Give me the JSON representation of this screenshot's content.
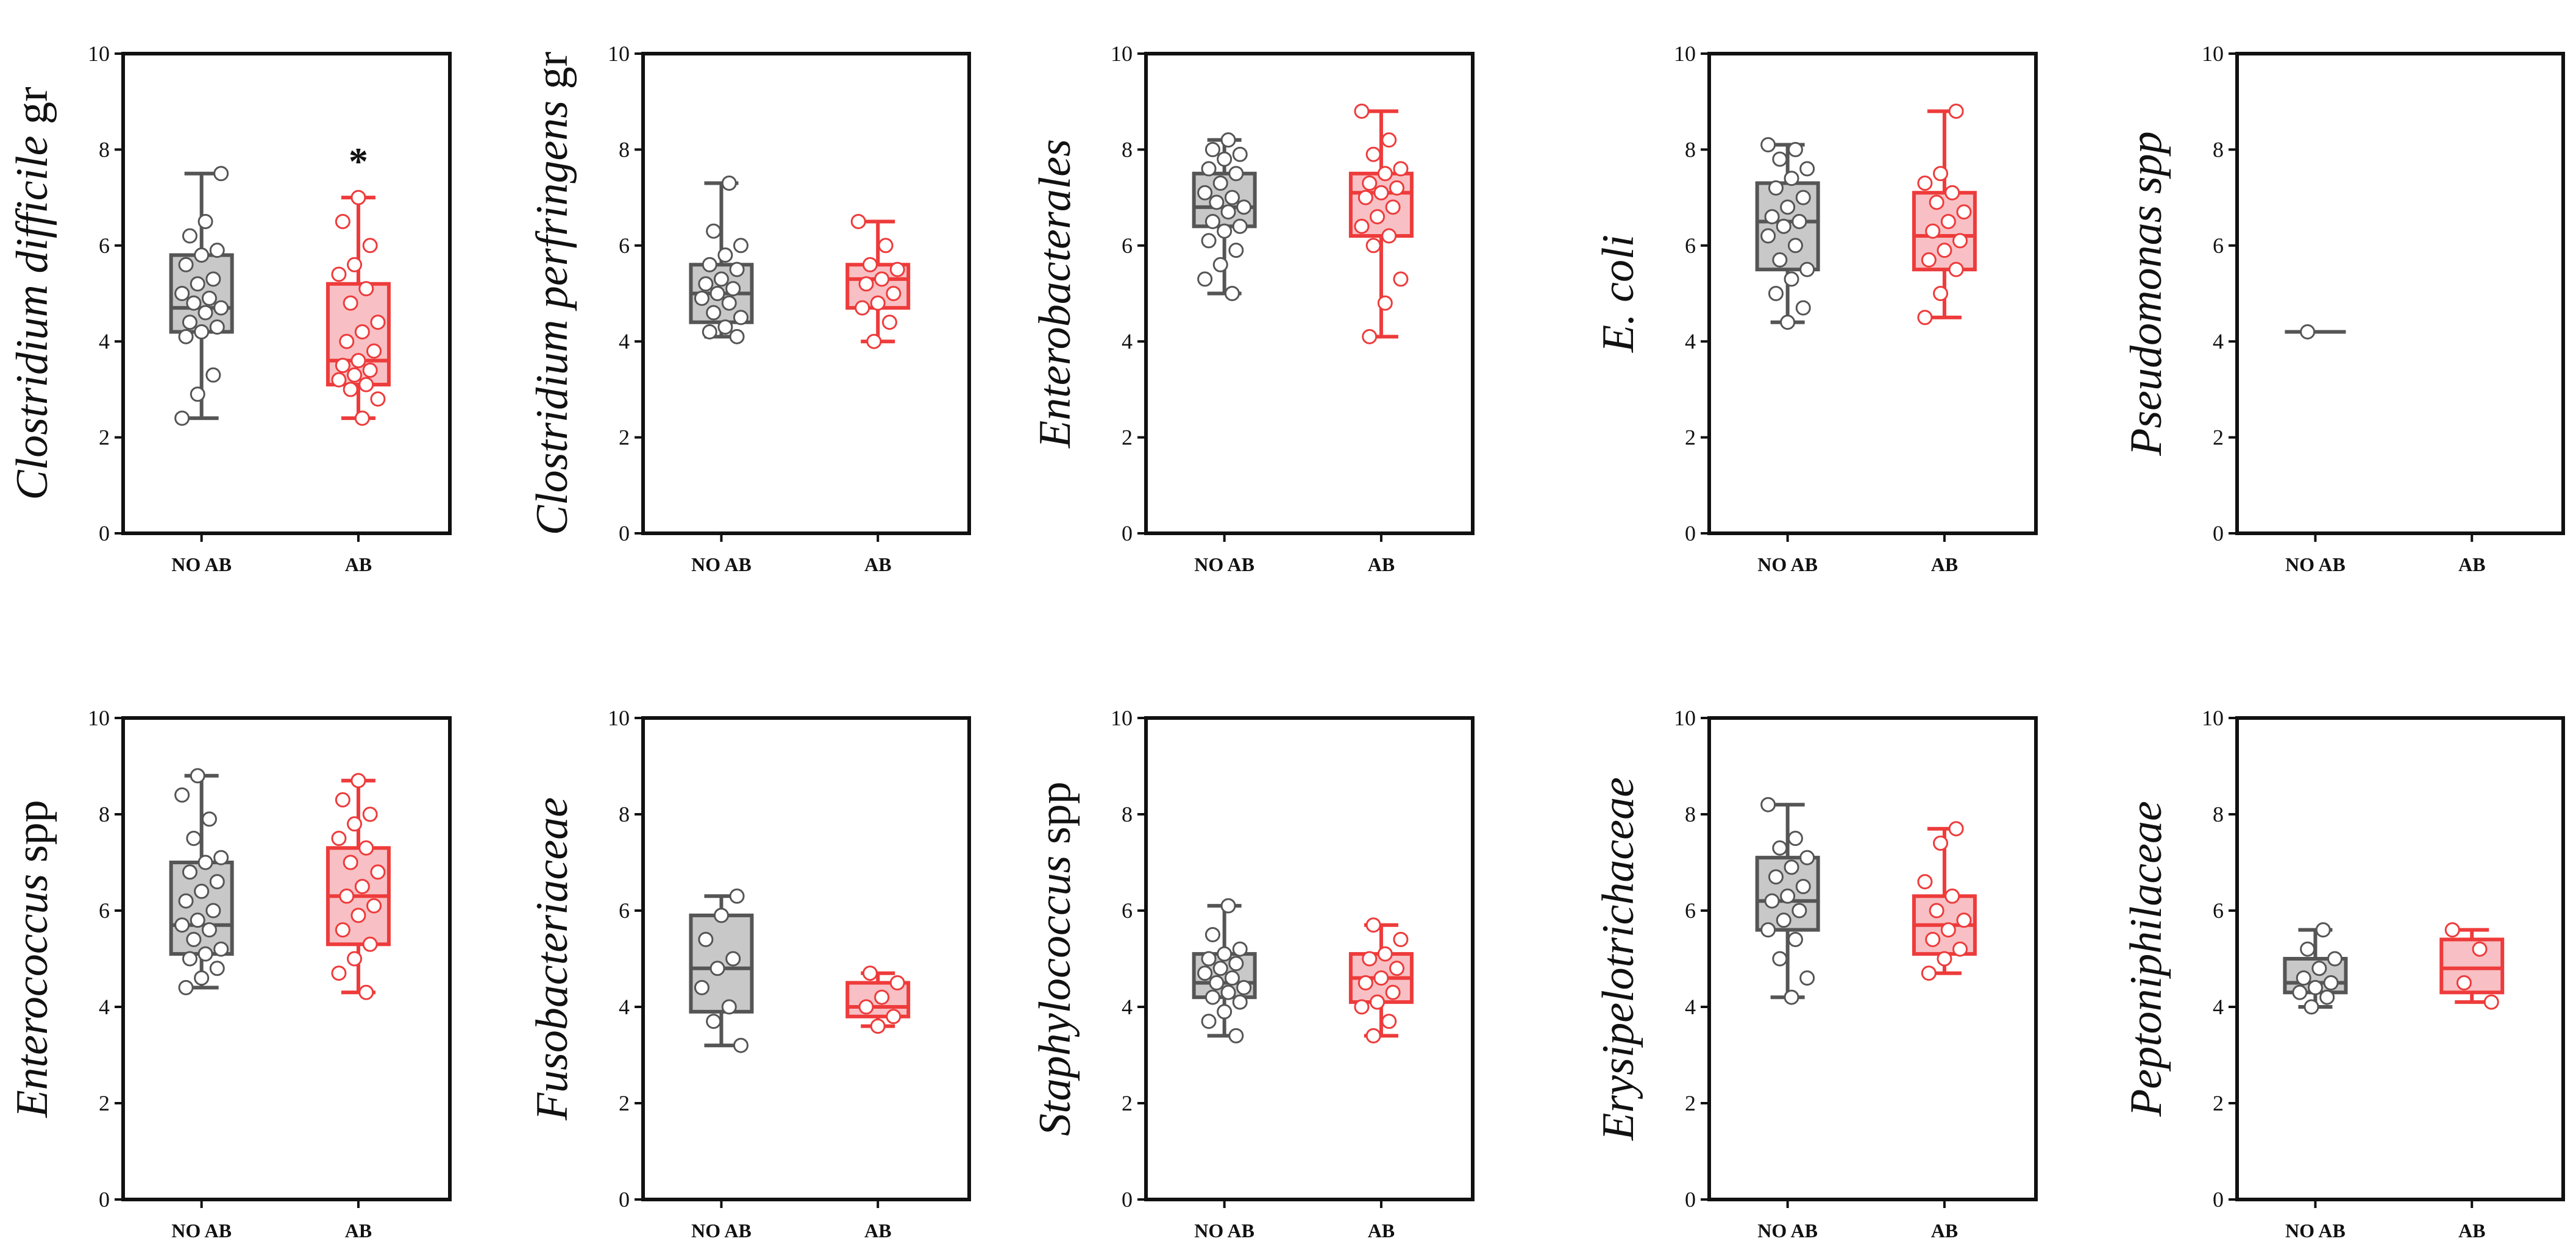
{
  "figure": {
    "layout": "2 rows x 5 panels",
    "colors": {
      "no_ab": "#555555",
      "no_ab_fill": "#c8c8c8",
      "ab": "#ee3b3b",
      "ab_fill": "#f8c0c4"
    }
  },
  "chart_data": [
    {
      "type": "boxplot",
      "title_italic": "Clostridium difficile",
      "title_suffix": " gr",
      "categories": [
        "NO AB",
        "AB"
      ],
      "ylim": [
        0,
        10
      ],
      "yticks": [
        0,
        2,
        4,
        6,
        8,
        10
      ],
      "significance": [
        null,
        "*"
      ],
      "series": [
        {
          "name": "NO AB",
          "whisker_low": 2.4,
          "q1": 4.2,
          "median": 4.7,
          "q3": 5.8,
          "whisker_high": 7.5,
          "points": [
            2.4,
            2.9,
            3.3,
            4.1,
            4.2,
            4.3,
            4.4,
            4.6,
            4.7,
            4.8,
            4.9,
            5.0,
            5.2,
            5.3,
            5.6,
            5.8,
            5.9,
            6.2,
            6.5,
            7.5
          ]
        },
        {
          "name": "AB",
          "whisker_low": 2.4,
          "q1": 3.1,
          "median": 3.6,
          "q3": 5.2,
          "whisker_high": 7.0,
          "points": [
            2.4,
            2.8,
            3.0,
            3.1,
            3.2,
            3.3,
            3.4,
            3.5,
            3.6,
            3.8,
            4.0,
            4.2,
            4.4,
            4.8,
            5.1,
            5.4,
            5.6,
            6.0,
            6.5,
            7.0
          ]
        }
      ]
    },
    {
      "type": "boxplot",
      "title_italic": "Clostridium perfringens",
      "title_suffix": " gr",
      "categories": [
        "NO AB",
        "AB"
      ],
      "ylim": [
        0,
        10
      ],
      "yticks": [
        0,
        2,
        4,
        6,
        8,
        10
      ],
      "significance": [
        null,
        null
      ],
      "series": [
        {
          "name": "NO AB",
          "whisker_low": 4.1,
          "q1": 4.4,
          "median": 5.0,
          "q3": 5.6,
          "whisker_high": 7.3,
          "points": [
            4.1,
            4.2,
            4.3,
            4.5,
            4.6,
            4.8,
            4.9,
            5.0,
            5.1,
            5.2,
            5.3,
            5.5,
            5.6,
            5.8,
            6.0,
            6.3,
            7.3
          ]
        },
        {
          "name": "AB",
          "whisker_low": 4.0,
          "q1": 4.7,
          "median": 5.3,
          "q3": 5.6,
          "whisker_high": 6.5,
          "points": [
            4.0,
            4.4,
            4.7,
            4.8,
            5.0,
            5.2,
            5.3,
            5.5,
            5.6,
            6.0,
            6.5
          ]
        }
      ]
    },
    {
      "type": "boxplot",
      "title_italic": "Enterobacterales",
      "title_suffix": "",
      "categories": [
        "NO AB",
        "AB"
      ],
      "ylim": [
        0,
        10
      ],
      "yticks": [
        0,
        2,
        4,
        6,
        8,
        10
      ],
      "significance": [
        null,
        null
      ],
      "series": [
        {
          "name": "NO AB",
          "whisker_low": 5.0,
          "q1": 6.4,
          "median": 6.8,
          "q3": 7.5,
          "whisker_high": 8.2,
          "points": [
            5.0,
            5.3,
            5.6,
            5.9,
            6.1,
            6.3,
            6.4,
            6.5,
            6.7,
            6.8,
            6.9,
            7.0,
            7.1,
            7.3,
            7.5,
            7.6,
            7.8,
            7.9,
            8.0,
            8.2
          ]
        },
        {
          "name": "AB",
          "whisker_low": 4.1,
          "q1": 6.2,
          "median": 7.1,
          "q3": 7.5,
          "whisker_high": 8.8,
          "points": [
            4.1,
            4.8,
            5.3,
            6.0,
            6.2,
            6.4,
            6.6,
            6.8,
            7.0,
            7.1,
            7.2,
            7.3,
            7.5,
            7.6,
            7.9,
            8.2,
            8.8
          ]
        }
      ]
    },
    {
      "type": "boxplot",
      "title_italic": "E. coli",
      "title_suffix": "",
      "categories": [
        "NO AB",
        "AB"
      ],
      "ylim": [
        0,
        10
      ],
      "yticks": [
        0,
        2,
        4,
        6,
        8,
        10
      ],
      "significance": [
        null,
        null
      ],
      "series": [
        {
          "name": "NO AB",
          "whisker_low": 4.4,
          "q1": 5.5,
          "median": 6.5,
          "q3": 7.3,
          "whisker_high": 8.1,
          "points": [
            4.4,
            4.7,
            5.0,
            5.3,
            5.5,
            5.7,
            6.0,
            6.2,
            6.4,
            6.5,
            6.6,
            6.8,
            7.0,
            7.2,
            7.4,
            7.6,
            7.8,
            8.0,
            8.1
          ]
        },
        {
          "name": "AB",
          "whisker_low": 4.5,
          "q1": 5.5,
          "median": 6.2,
          "q3": 7.1,
          "whisker_high": 8.8,
          "points": [
            4.5,
            5.0,
            5.5,
            5.7,
            5.9,
            6.1,
            6.3,
            6.5,
            6.7,
            6.9,
            7.1,
            7.3,
            7.5,
            8.8
          ]
        }
      ]
    },
    {
      "type": "boxplot",
      "title_italic": "Pseudomonas spp",
      "title_suffix": "",
      "categories": [
        "NO AB",
        "AB"
      ],
      "ylim": [
        0,
        10
      ],
      "yticks": [
        0,
        2,
        4,
        6,
        8,
        10
      ],
      "significance": [
        null,
        null
      ],
      "series": [
        {
          "name": "NO AB",
          "whisker_low": 4.2,
          "q1": 4.2,
          "median": 4.2,
          "q3": 4.2,
          "whisker_high": 4.2,
          "points": [
            4.2
          ]
        },
        {
          "name": "AB",
          "points": []
        }
      ]
    },
    {
      "type": "boxplot",
      "title_italic": "Enterococcus",
      "title_suffix": " spp",
      "categories": [
        "NO AB",
        "AB"
      ],
      "ylim": [
        0,
        10
      ],
      "yticks": [
        0,
        2,
        4,
        6,
        8,
        10
      ],
      "significance": [
        null,
        null
      ],
      "series": [
        {
          "name": "NO AB",
          "whisker_low": 4.4,
          "q1": 5.1,
          "median": 5.7,
          "q3": 7.0,
          "whisker_high": 8.8,
          "points": [
            4.4,
            4.6,
            4.8,
            5.0,
            5.1,
            5.2,
            5.4,
            5.6,
            5.7,
            5.8,
            6.0,
            6.2,
            6.4,
            6.6,
            6.8,
            7.0,
            7.1,
            7.5,
            7.9,
            8.4,
            8.8
          ]
        },
        {
          "name": "AB",
          "whisker_low": 4.3,
          "q1": 5.3,
          "median": 6.3,
          "q3": 7.3,
          "whisker_high": 8.7,
          "points": [
            4.3,
            4.7,
            5.0,
            5.3,
            5.6,
            5.9,
            6.1,
            6.3,
            6.5,
            6.8,
            7.0,
            7.3,
            7.5,
            7.8,
            8.0,
            8.3,
            8.7
          ]
        }
      ]
    },
    {
      "type": "boxplot",
      "title_italic": "Fusobacteriaceae",
      "title_suffix": "",
      "categories": [
        "NO AB",
        "AB"
      ],
      "ylim": [
        0,
        10
      ],
      "yticks": [
        0,
        2,
        4,
        6,
        8,
        10
      ],
      "significance": [
        null,
        null
      ],
      "series": [
        {
          "name": "NO AB",
          "whisker_low": 3.2,
          "q1": 3.9,
          "median": 4.8,
          "q3": 5.9,
          "whisker_high": 6.3,
          "points": [
            3.2,
            3.7,
            4.0,
            4.4,
            4.8,
            5.0,
            5.4,
            5.9,
            6.3
          ]
        },
        {
          "name": "AB",
          "whisker_low": 3.6,
          "q1": 3.8,
          "median": 4.0,
          "q3": 4.5,
          "whisker_high": 4.7,
          "points": [
            3.6,
            3.8,
            4.0,
            4.2,
            4.5,
            4.7
          ]
        }
      ]
    },
    {
      "type": "boxplot",
      "title_italic": "Staphylococcus",
      "title_suffix": " spp",
      "categories": [
        "NO AB",
        "AB"
      ],
      "ylim": [
        0,
        10
      ],
      "yticks": [
        0,
        2,
        4,
        6,
        8,
        10
      ],
      "significance": [
        null,
        null
      ],
      "series": [
        {
          "name": "NO AB",
          "whisker_low": 3.4,
          "q1": 4.2,
          "median": 4.5,
          "q3": 5.1,
          "whisker_high": 6.1,
          "points": [
            3.4,
            3.7,
            3.9,
            4.1,
            4.2,
            4.3,
            4.4,
            4.5,
            4.6,
            4.7,
            4.8,
            4.9,
            5.0,
            5.1,
            5.2,
            5.5,
            6.1
          ]
        },
        {
          "name": "AB",
          "whisker_low": 3.4,
          "q1": 4.1,
          "median": 4.6,
          "q3": 5.1,
          "whisker_high": 5.7,
          "points": [
            3.4,
            3.7,
            4.0,
            4.1,
            4.3,
            4.5,
            4.6,
            4.8,
            5.0,
            5.1,
            5.4,
            5.7
          ]
        }
      ]
    },
    {
      "type": "boxplot",
      "title_italic": "Erysipelotrichaceae",
      "title_suffix": "",
      "categories": [
        "NO AB",
        "AB"
      ],
      "ylim": [
        0,
        10
      ],
      "yticks": [
        0,
        2,
        4,
        6,
        8,
        10
      ],
      "significance": [
        null,
        null
      ],
      "series": [
        {
          "name": "NO AB",
          "whisker_low": 4.2,
          "q1": 5.6,
          "median": 6.2,
          "q3": 7.1,
          "whisker_high": 8.2,
          "points": [
            4.2,
            4.6,
            5.0,
            5.4,
            5.6,
            5.8,
            6.0,
            6.2,
            6.3,
            6.5,
            6.7,
            6.9,
            7.1,
            7.3,
            7.5,
            8.2
          ]
        },
        {
          "name": "AB",
          "whisker_low": 4.7,
          "q1": 5.1,
          "median": 5.7,
          "q3": 6.3,
          "whisker_high": 7.7,
          "points": [
            4.7,
            5.0,
            5.2,
            5.4,
            5.6,
            5.8,
            6.0,
            6.3,
            6.6,
            7.4,
            7.7
          ]
        }
      ]
    },
    {
      "type": "boxplot",
      "title_italic": "Peptoniphilaceae",
      "title_suffix": "",
      "categories": [
        "NO AB",
        "AB"
      ],
      "ylim": [
        0,
        10
      ],
      "yticks": [
        0,
        2,
        4,
        6,
        8,
        10
      ],
      "significance": [
        null,
        null
      ],
      "series": [
        {
          "name": "NO AB",
          "whisker_low": 4.0,
          "q1": 4.3,
          "median": 4.5,
          "q3": 5.0,
          "whisker_high": 5.6,
          "points": [
            4.0,
            4.2,
            4.3,
            4.4,
            4.5,
            4.6,
            4.8,
            5.0,
            5.2,
            5.6
          ]
        },
        {
          "name": "AB",
          "whisker_low": 4.1,
          "q1": 4.3,
          "median": 4.8,
          "q3": 5.4,
          "whisker_high": 5.6,
          "points": [
            4.1,
            4.5,
            5.2,
            5.6
          ]
        }
      ]
    }
  ]
}
